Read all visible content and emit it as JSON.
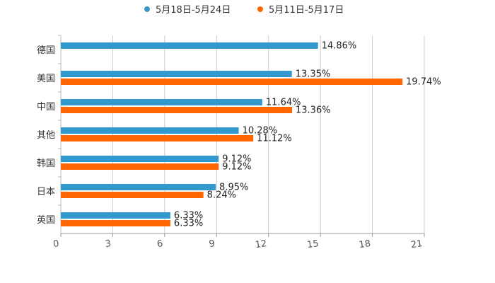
{
  "chart_data": {
    "type": "bar",
    "orientation": "horizontal",
    "title": "",
    "xlabel": "",
    "ylabel": "",
    "xlim": [
      0,
      21
    ],
    "xticks": [
      0,
      3,
      6,
      9,
      12,
      15,
      18,
      21
    ],
    "grid": true,
    "legend_position": "top",
    "categories": [
      "德国",
      "美国",
      "中国",
      "其他",
      "韩国",
      "日本",
      "英国"
    ],
    "series": [
      {
        "name": "5月18日-5月24日",
        "color": "#3399cc",
        "values": [
          14.86,
          13.35,
          11.64,
          10.28,
          9.12,
          8.95,
          6.33
        ],
        "labels": [
          "14.86%",
          "13.35%",
          "11.64%",
          "10.28%",
          "9.12%",
          "8.95%",
          "6.33%"
        ]
      },
      {
        "name": "5月11日-5月17日",
        "color": "#ff6600",
        "values": [
          null,
          19.74,
          13.36,
          11.12,
          9.12,
          8.24,
          6.33
        ],
        "labels": [
          "",
          "19.74%",
          "13.36%",
          "11.12%",
          "9.12%",
          "8.24%",
          "6.33%"
        ]
      }
    ]
  }
}
